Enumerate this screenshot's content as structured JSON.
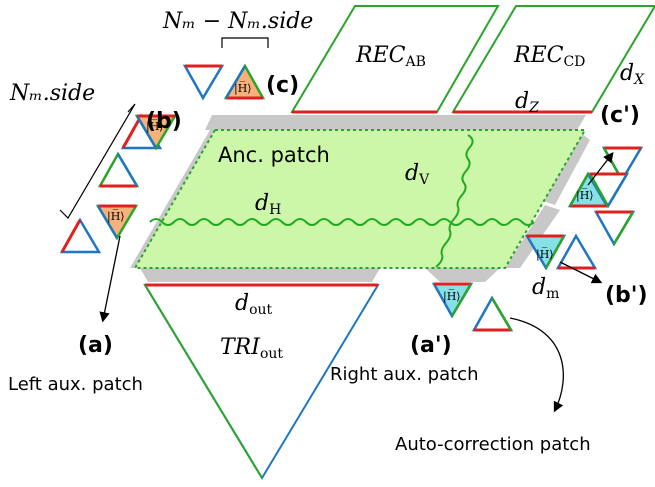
{
  "labels": {
    "nm_minus_side": "Nₘ − Nₘ.side",
    "nm_side": "Nₘ.side",
    "rec_ab": "REC",
    "rec_ab_sub": "AB",
    "rec_cd": "REC",
    "rec_cd_sub": "CD",
    "dx": "d",
    "dx_sub": "X",
    "dz": "d",
    "dz_sub": "Z",
    "anc_patch": "Anc. patch",
    "dv": "d",
    "dv_sub": "V",
    "dh": "d",
    "dh_sub": "H",
    "dout": "d",
    "dout_sub": "out",
    "dm": "d",
    "dm_sub": "m",
    "tri_out": "TRI",
    "tri_out_sub": "out",
    "tag_a": "(a)",
    "tag_b": "(b)",
    "tag_c": "(c)",
    "tag_a_prime": "(a')",
    "tag_b_prime": "(b')",
    "tag_c_prime": "(c')",
    "left_aux": "Left aux. patch",
    "right_aux": "Right aux. patch",
    "auto_correction": "Auto-correction patch",
    "state_h": "|H̅⟩"
  },
  "colors": {
    "red": "#e02020",
    "green": "#2aa52a",
    "blue": "#1f77c4",
    "anc_fill": "#cdf7a8",
    "gray": "#c8c8c8",
    "orange": "#f6b27a",
    "cyan": "#86e0e6",
    "wavy": "#22aa22"
  }
}
